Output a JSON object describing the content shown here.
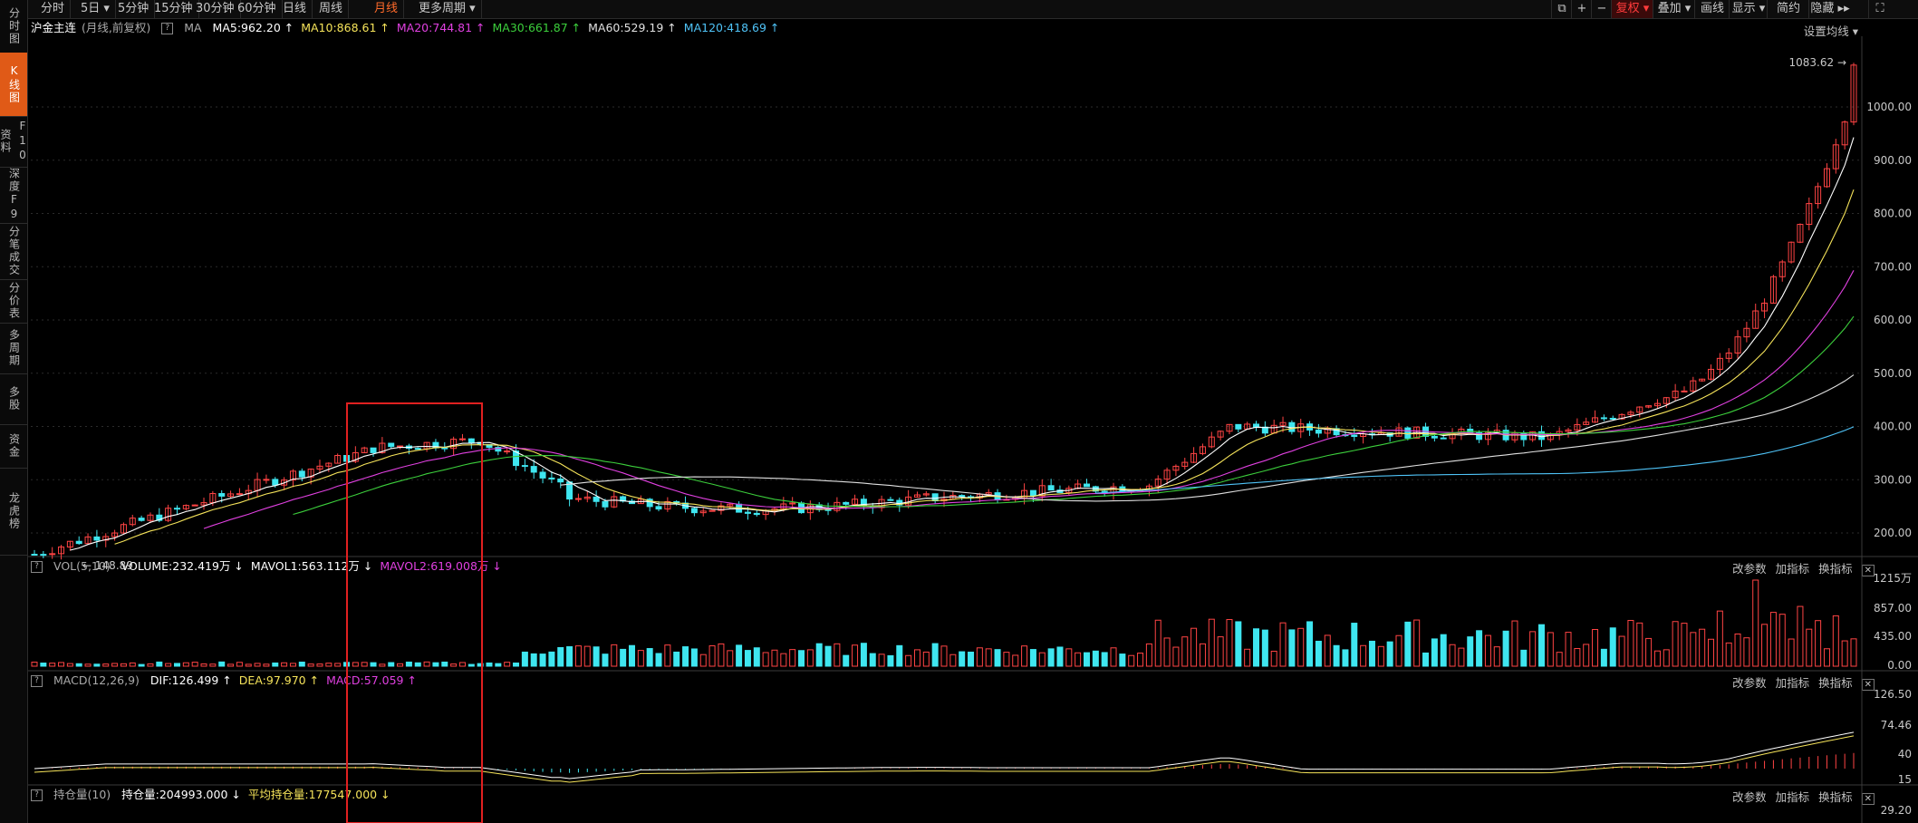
{
  "sidebar": [
    {
      "label": "分时图",
      "active": false
    },
    {
      "label": "K线图",
      "active": true
    },
    {
      "label": "F10资料",
      "active": false
    },
    {
      "label": "深度F9",
      "active": false
    },
    {
      "label": "分笔成交",
      "active": false
    },
    {
      "label": "分价表",
      "active": false
    },
    {
      "label": "多周期",
      "active": false
    },
    {
      "label": "多股",
      "active": false
    },
    {
      "label": "资金",
      "active": false
    },
    {
      "label": "龙虎榜",
      "active": false
    }
  ],
  "toolbar": {
    "tabs": [
      "分时",
      "5日 ▾",
      "5分钟",
      "15分钟",
      "30分钟",
      "60分钟",
      "日线",
      "周线",
      "月线",
      "更多周期 ▾"
    ],
    "active_tab": "月线",
    "right": [
      "⧉",
      "+",
      "−",
      "复权 ▾",
      "叠加 ▾",
      "画线",
      "显示 ▾",
      "简约",
      "隐藏 ▸▸",
      "⛶"
    ]
  },
  "price_panel": {
    "title": "沪金主连",
    "subtitle": "(月线,前复权)",
    "ma_label": "MA",
    "ma": [
      {
        "text": "MA5:962.20",
        "color": "#ffffff"
      },
      {
        "text": "MA10:868.61",
        "color": "#f5e35a"
      },
      {
        "text": "MA20:744.81",
        "color": "#e040e0"
      },
      {
        "text": "MA30:661.87",
        "color": "#3ccf3c"
      },
      {
        "text": "MA60:529.19",
        "color": "#e0e0e0"
      },
      {
        "text": "MA120:418.69",
        "color": "#4fc3f7"
      }
    ],
    "ma_arrow": "↑",
    "settings": "设置均线 ▾",
    "high_label": "1083.62",
    "low_label": "148.89",
    "y_ticks": [
      "1000.00",
      "900.00",
      "800.00",
      "700.00",
      "600.00",
      "500.00",
      "400.00",
      "300.00",
      "200.00"
    ]
  },
  "vol_panel": {
    "name": "VOL(5,10)",
    "items": [
      {
        "text": "VOLUME:232.419万",
        "color": "#ffffff",
        "arrow": "↓"
      },
      {
        "text": "MAVOL1:563.112万",
        "color": "#ffffff",
        "arrow": "↓"
      },
      {
        "text": "MAVOL2:619.008万",
        "color": "#e040e0",
        "arrow": "↓"
      }
    ],
    "links": [
      "改参数",
      "加指标",
      "换指标"
    ],
    "y_ticks": [
      "1215万",
      "857.00",
      "435.00",
      "0.00"
    ]
  },
  "macd_panel": {
    "name": "MACD(12,26,9)",
    "items": [
      {
        "text": "DIF:126.499",
        "color": "#ffffff",
        "arrow": "↑"
      },
      {
        "text": "DEA:97.970",
        "color": "#f5e35a",
        "arrow": "↑"
      },
      {
        "text": "MACD:57.059",
        "color": "#e040e0",
        "arrow": "↑"
      }
    ],
    "links": [
      "改参数",
      "加指标",
      "换指标"
    ],
    "y_ticks": [
      "126.50",
      "74.46",
      "40",
      "15"
    ]
  },
  "oi_panel": {
    "name": "持仓量(10)",
    "items": [
      {
        "text": "持仓量:204993.000",
        "color": "#ffffff",
        "arrow": "↓"
      },
      {
        "text": "平均持仓量:177547.000",
        "color": "#f5e35a",
        "arrow": "↓"
      }
    ],
    "links": [
      "改参数",
      "加指标",
      "换指标"
    ],
    "y_ticks": [
      "29.20"
    ]
  },
  "colors": {
    "up": "#ff4444",
    "down": "#3fe6f0",
    "accent": "#e05a17",
    "highlight_box": "#e02020"
  }
}
